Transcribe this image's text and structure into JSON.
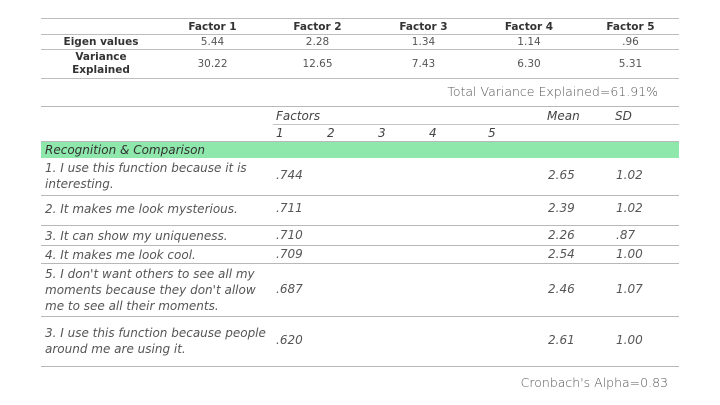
{
  "summary": {
    "headers": [
      "Factor 1",
      "Factor 2",
      "Factor 3",
      "Factor 4",
      "Factor 5"
    ],
    "eigen_label": "Eigen values",
    "eigen": [
      "5.44",
      "2.28",
      "1.34",
      "1.14",
      ".96"
    ],
    "variance_label_line1": "Variance",
    "variance_label_line2": "Explained",
    "variance": [
      "30.22",
      "12.65",
      "7.43",
      "6.30",
      "5.31"
    ]
  },
  "total_variance": "Total Variance Explained=61.91%",
  "loadings": {
    "factors_label": "Factors",
    "factor_numbers": [
      "1",
      "2",
      "3",
      "4",
      "5"
    ],
    "mean_label": "Mean",
    "sd_label": "SD",
    "section": "Recognition & Comparison",
    "items": [
      {
        "text": "1. I use this function because it is interesting.",
        "loading": ".744",
        "mean": "2.65",
        "sd": "1.02"
      },
      {
        "text": "2. It makes me look mysterious.",
        "loading": ".711",
        "mean": "2.39",
        "sd": "1.02"
      },
      {
        "text": "3. It can show my uniqueness.",
        "loading": ".710",
        "mean": "2.26",
        "sd": ".87"
      },
      {
        "text": "4. It makes me look cool.",
        "loading": ".709",
        "mean": "2.54",
        "sd": "1.00"
      },
      {
        "text": "5. I don't want others to see all my moments because they don't allow me to see all their moments.",
        "loading": ".687",
        "mean": "2.46",
        "sd": "1.07"
      },
      {
        "text": "3. I use this function because people around me are using it.",
        "loading": ".620",
        "mean": "2.61",
        "sd": "1.00"
      }
    ]
  },
  "cronbach": "Cronbach's Alpha=0.83"
}
